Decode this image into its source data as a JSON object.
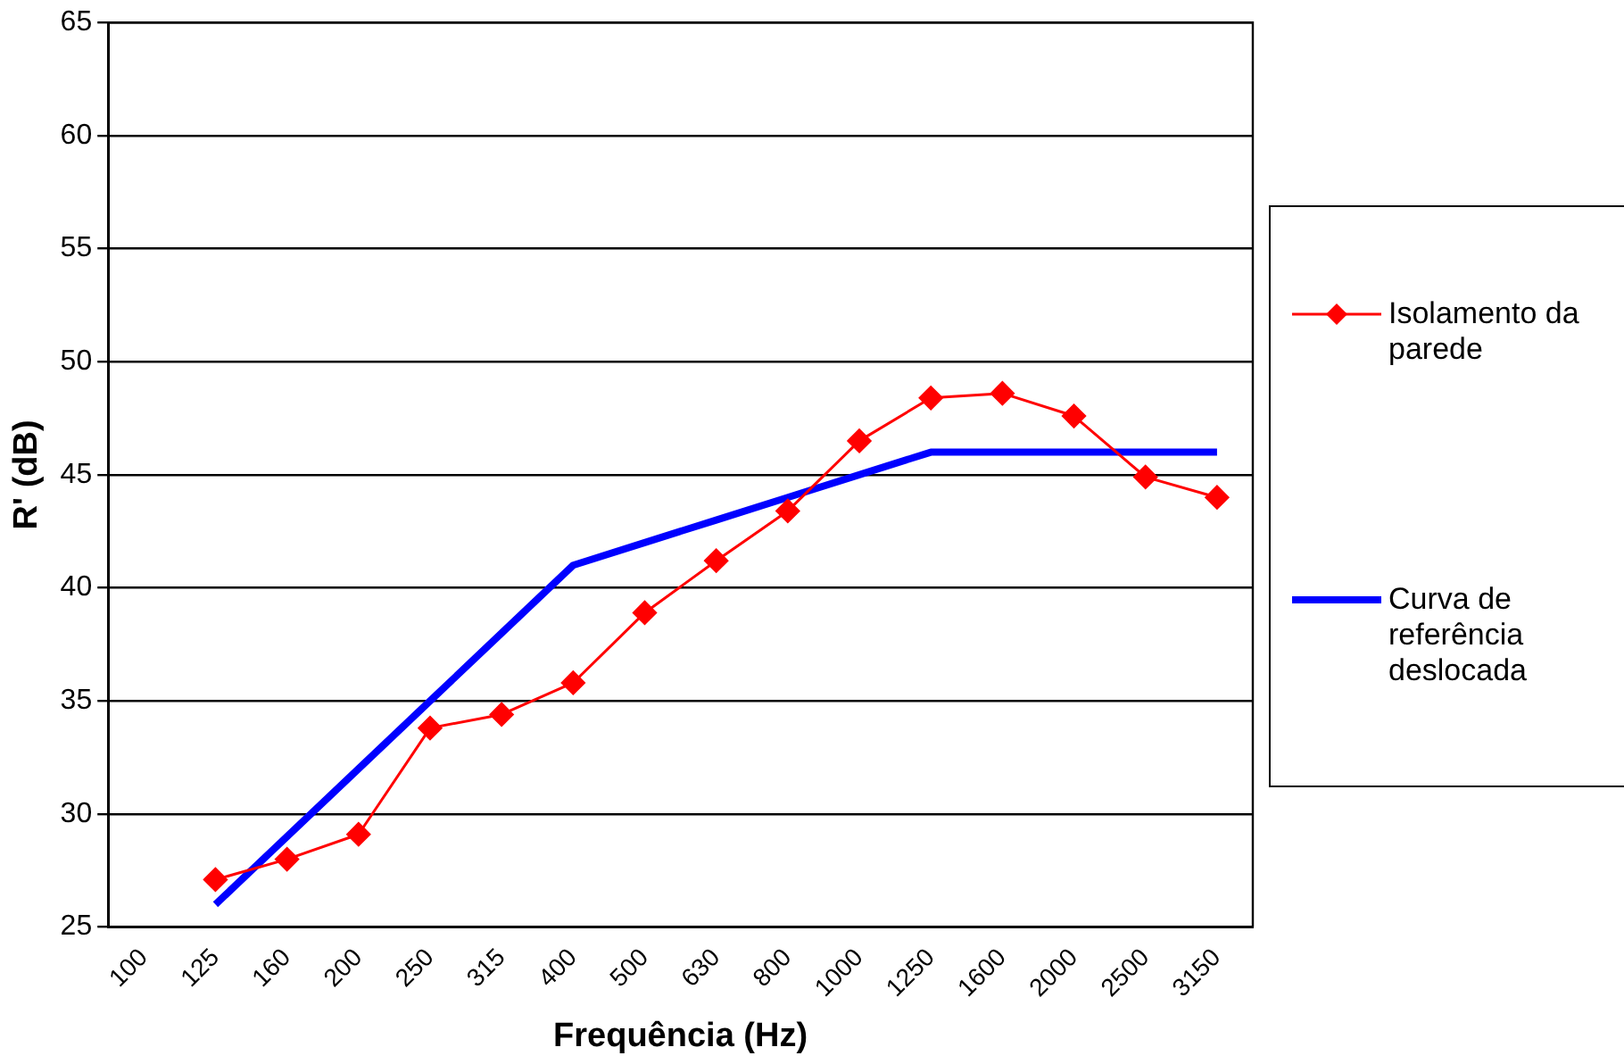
{
  "chart_data": {
    "type": "line",
    "xlabel": "Frequência (Hz)",
    "ylabel": "R' (dB)",
    "categories": [
      "100",
      "125",
      "160",
      "200",
      "250",
      "315",
      "400",
      "500",
      "630",
      "800",
      "1000",
      "1250",
      "1600",
      "2000",
      "2500",
      "3150"
    ],
    "series": [
      {
        "name": "Isolamento da parede",
        "color": "#ff0000",
        "marker": "diamond",
        "values": [
          null,
          27.1,
          28.0,
          29.1,
          33.8,
          34.4,
          35.8,
          38.9,
          41.2,
          43.4,
          46.5,
          48.4,
          48.6,
          47.6,
          44.9,
          44.0
        ]
      },
      {
        "name": "Curva de referência deslocada",
        "color": "#0000ff",
        "marker": "none",
        "values": [
          null,
          26,
          29,
          32,
          35,
          38,
          41,
          42,
          43,
          44,
          45,
          46,
          46,
          46,
          46,
          46
        ]
      }
    ],
    "ylim": [
      25,
      65
    ],
    "yticks": [
      25,
      30,
      35,
      40,
      45,
      50,
      55,
      60,
      65
    ],
    "grid": "y",
    "legend": "right"
  }
}
